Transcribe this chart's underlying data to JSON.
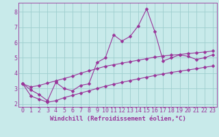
{
  "xlabel": "Windchill (Refroidissement éolien,°C)",
  "background_color": "#c8eaea",
  "line_color": "#993399",
  "grid_color": "#9ecece",
  "x_values": [
    0,
    1,
    2,
    3,
    4,
    5,
    6,
    7,
    8,
    9,
    10,
    11,
    12,
    13,
    14,
    15,
    16,
    17,
    18,
    19,
    20,
    21,
    22,
    23
  ],
  "y_main": [
    3.3,
    2.9,
    2.6,
    2.2,
    3.4,
    3.0,
    2.85,
    3.2,
    3.3,
    4.7,
    5.0,
    6.5,
    6.1,
    6.4,
    7.1,
    8.2,
    6.7,
    4.8,
    5.0,
    5.2,
    5.1,
    4.9,
    5.0,
    5.2
  ],
  "y_upper": [
    3.3,
    3.1,
    3.2,
    3.35,
    3.5,
    3.65,
    3.8,
    4.0,
    4.15,
    4.3,
    4.45,
    4.55,
    4.65,
    4.75,
    4.85,
    4.95,
    5.05,
    5.12,
    5.18,
    5.22,
    5.28,
    5.33,
    5.38,
    5.45
  ],
  "y_lower": [
    3.3,
    2.5,
    2.3,
    2.1,
    2.2,
    2.4,
    2.55,
    2.7,
    2.85,
    3.0,
    3.15,
    3.28,
    3.4,
    3.52,
    3.63,
    3.74,
    3.85,
    3.95,
    4.05,
    4.13,
    4.21,
    4.29,
    4.38,
    4.47
  ],
  "xlim": [
    -0.5,
    23.5
  ],
  "ylim": [
    1.8,
    8.6
  ],
  "yticks": [
    2,
    3,
    4,
    5,
    6,
    7,
    8
  ],
  "xticks": [
    0,
    1,
    2,
    3,
    4,
    5,
    6,
    7,
    8,
    9,
    10,
    11,
    12,
    13,
    14,
    15,
    16,
    17,
    18,
    19,
    20,
    21,
    22,
    23
  ],
  "markersize": 2.5,
  "linewidth": 0.8,
  "xlabel_fontsize": 6.5,
  "tick_fontsize": 6.0
}
